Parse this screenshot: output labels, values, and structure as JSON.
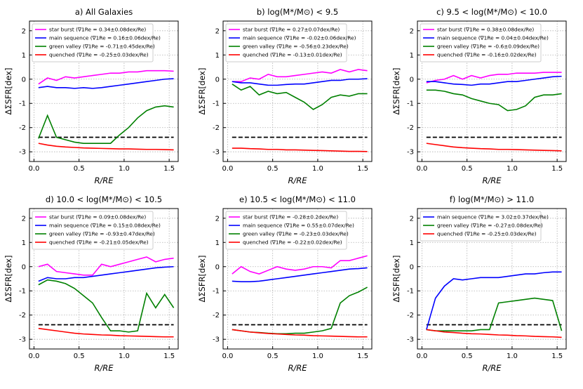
{
  "chart_data": [
    {
      "type": "line",
      "title": "a) All Galaxies",
      "xlabel": "R/RE",
      "ylabel": "ΔΣSFR[dex]",
      "xlim": [
        -0.05,
        1.6
      ],
      "ylim": [
        -3.4,
        2.4
      ],
      "xticks": [
        {
          "value": 0,
          "label": "0.0"
        },
        0.5,
        {
          "value": 1,
          "label": "1.0"
        },
        1.5
      ],
      "yticks": [
        -3,
        -2,
        -1,
        0,
        1,
        2
      ],
      "grid": true,
      "hline": -2.4,
      "x": [
        0.05,
        0.15,
        0.25,
        0.35,
        0.45,
        0.55,
        0.65,
        0.75,
        0.85,
        0.95,
        1.05,
        1.15,
        1.25,
        1.35,
        1.45,
        1.55
      ],
      "series": [
        {
          "name": "star burst (∇1Re = 0.34±0.08dex/Re)",
          "color": "#ff00ff",
          "values": [
            -0.2,
            0.05,
            -0.05,
            0.1,
            0.05,
            0.1,
            0.15,
            0.2,
            0.25,
            0.25,
            0.3,
            0.3,
            0.35,
            0.35,
            0.35,
            0.33
          ]
        },
        {
          "name": "main sequence (∇1Re = 0.16±0.06dex/Re)",
          "color": "#0000ff",
          "values": [
            -0.35,
            -0.3,
            -0.35,
            -0.35,
            -0.38,
            -0.35,
            -0.38,
            -0.35,
            -0.3,
            -0.25,
            -0.2,
            -0.15,
            -0.1,
            -0.05,
            0,
            0.02
          ]
        },
        {
          "name": "green valley (∇1Re = -0.71±0.45dex/Re)",
          "color": "#008000",
          "values": [
            -2.45,
            -1.5,
            -2.4,
            -2.5,
            -2.6,
            -2.65,
            -2.65,
            -2.65,
            -2.65,
            -2.3,
            -2.0,
            -1.6,
            -1.3,
            -1.15,
            -1.1,
            -1.15
          ]
        },
        {
          "name": "quenched (∇1Re = -0.25±0.03dex/Re)",
          "color": "#ff0000",
          "values": [
            -2.65,
            -2.72,
            -2.77,
            -2.8,
            -2.82,
            -2.84,
            -2.85,
            -2.86,
            -2.87,
            -2.88,
            -2.88,
            -2.89,
            -2.9,
            -2.9,
            -2.91,
            -2.92
          ]
        }
      ]
    },
    {
      "type": "line",
      "title": "b) log(M*/M⊙) < 9.5",
      "xlabel": "R/RE",
      "ylabel": "ΔΣSFR[dex]",
      "xlim": [
        -0.05,
        1.6
      ],
      "ylim": [
        -3.4,
        2.4
      ],
      "xticks": [
        {
          "value": 0,
          "label": "0.0"
        },
        0.5,
        {
          "value": 1,
          "label": "1.0"
        },
        1.5
      ],
      "yticks": [
        -3,
        -2,
        -1,
        0,
        1,
        2
      ],
      "grid": true,
      "hline": -2.4,
      "x": [
        0.05,
        0.15,
        0.25,
        0.35,
        0.45,
        0.55,
        0.65,
        0.75,
        0.85,
        0.95,
        1.05,
        1.15,
        1.25,
        1.35,
        1.45,
        1.55
      ],
      "series": [
        {
          "name": "star burst (∇1Re = 0.27±0.07dex/Re)",
          "color": "#ff00ff",
          "values": [
            -0.1,
            -0.1,
            0.05,
            0.0,
            0.2,
            0.1,
            0.1,
            0.15,
            0.2,
            0.25,
            0.3,
            0.25,
            0.4,
            0.3,
            0.4,
            0.35
          ]
        },
        {
          "name": "main sequence (∇1Re = -0.02±0.06dex/Re)",
          "color": "#0000ff",
          "values": [
            -0.1,
            -0.15,
            -0.15,
            -0.2,
            -0.25,
            -0.25,
            -0.22,
            -0.2,
            -0.2,
            -0.15,
            -0.1,
            -0.05,
            -0.05,
            0,
            0,
            0.02
          ]
        },
        {
          "name": "green valley (∇1Re = -0.56±0.23dex/Re)",
          "color": "#008000",
          "values": [
            -0.2,
            -0.45,
            -0.3,
            -0.65,
            -0.5,
            -0.6,
            -0.55,
            -0.75,
            -0.95,
            -1.25,
            -1.05,
            -0.75,
            -0.65,
            -0.7,
            -0.6,
            -0.6
          ]
        },
        {
          "name": "quenched (∇1Re = -0.13±0.01dex/Re)",
          "color": "#ff0000",
          "values": [
            -2.85,
            -2.85,
            -2.87,
            -2.88,
            -2.9,
            -2.9,
            -2.92,
            -2.92,
            -2.93,
            -2.94,
            -2.95,
            -2.96,
            -2.97,
            -2.98,
            -2.98,
            -2.99
          ]
        }
      ]
    },
    {
      "type": "line",
      "title": "c) 9.5 < log(M*/M⊙) < 10.0",
      "xlabel": "R/RE",
      "ylabel": "ΔΣSFR[dex]",
      "xlim": [
        -0.05,
        1.6
      ],
      "ylim": [
        -3.4,
        2.4
      ],
      "xticks": [
        {
          "value": 0,
          "label": "0.0"
        },
        0.5,
        {
          "value": 1,
          "label": "1.0"
        },
        1.5
      ],
      "yticks": [
        -3,
        -2,
        -1,
        0,
        1,
        2
      ],
      "grid": true,
      "hline": -2.4,
      "x": [
        0.05,
        0.15,
        0.25,
        0.35,
        0.45,
        0.55,
        0.65,
        0.75,
        0.85,
        0.95,
        1.05,
        1.15,
        1.25,
        1.35,
        1.45,
        1.55
      ],
      "series": [
        {
          "name": "star burst (∇1Re = 0.38±0.08dex/Re)",
          "color": "#ff00ff",
          "values": [
            -0.15,
            -0.05,
            0.0,
            0.15,
            0.0,
            0.15,
            0.05,
            0.15,
            0.2,
            0.2,
            0.25,
            0.25,
            0.25,
            0.28,
            0.28,
            0.28
          ]
        },
        {
          "name": "main sequence (∇1Re = 0.04±0.04dex/Re)",
          "color": "#0000ff",
          "values": [
            -0.1,
            -0.1,
            -0.15,
            -0.2,
            -0.22,
            -0.25,
            -0.2,
            -0.2,
            -0.15,
            -0.1,
            -0.1,
            -0.05,
            0.0,
            0.05,
            0.1,
            0.12
          ]
        },
        {
          "name": "green valley (∇1Re = -0.6±0.09dex/Re)",
          "color": "#008000",
          "values": [
            -0.45,
            -0.45,
            -0.5,
            -0.6,
            -0.65,
            -0.8,
            -0.9,
            -1.0,
            -1.05,
            -1.3,
            -1.25,
            -1.1,
            -0.75,
            -0.65,
            -0.65,
            -0.6
          ]
        },
        {
          "name": "quenched (∇1Re = -0.16±0.02dex/Re)",
          "color": "#ff0000",
          "values": [
            -2.65,
            -2.7,
            -2.75,
            -2.8,
            -2.83,
            -2.85,
            -2.87,
            -2.88,
            -2.9,
            -2.9,
            -2.91,
            -2.92,
            -2.93,
            -2.94,
            -2.95,
            -2.96
          ]
        }
      ]
    },
    {
      "type": "line",
      "title": "d) 10.0 < log(M*/M⊙) < 10.5",
      "xlabel": "R/RE",
      "ylabel": "ΔΣSFR[dex]",
      "xlim": [
        -0.05,
        1.6
      ],
      "ylim": [
        -3.4,
        2.4
      ],
      "xticks": [
        {
          "value": 0,
          "label": "0.0"
        },
        0.5,
        {
          "value": 1,
          "label": "1.0"
        },
        1.5
      ],
      "yticks": [
        -3,
        -2,
        -1,
        0,
        1,
        2
      ],
      "grid": true,
      "hline": -2.4,
      "x": [
        0.05,
        0.15,
        0.25,
        0.35,
        0.45,
        0.55,
        0.65,
        0.75,
        0.85,
        0.95,
        1.05,
        1.15,
        1.25,
        1.35,
        1.45,
        1.55
      ],
      "series": [
        {
          "name": "star burst (∇1Re = 0.09±0.08dex/Re)",
          "color": "#ff00ff",
          "values": [
            0.0,
            0.1,
            -0.2,
            -0.25,
            -0.3,
            -0.35,
            -0.35,
            0.1,
            0.0,
            0.1,
            0.2,
            0.3,
            0.4,
            0.2,
            0.3,
            0.35
          ]
        },
        {
          "name": "main sequence (∇1Re = 0.15±0.08dex/Re)",
          "color": "#0000ff",
          "values": [
            -0.6,
            -0.45,
            -0.5,
            -0.5,
            -0.45,
            -0.45,
            -0.4,
            -0.35,
            -0.3,
            -0.25,
            -0.2,
            -0.15,
            -0.1,
            -0.05,
            -0.02,
            0.0
          ]
        },
        {
          "name": "green valley (∇1Re = -0.93±0.47dex/Re)",
          "color": "#008000",
          "values": [
            -0.75,
            -0.55,
            -0.6,
            -0.7,
            -0.9,
            -1.2,
            -1.5,
            -2.1,
            -2.65,
            -2.65,
            -2.7,
            -2.65,
            -1.1,
            -1.7,
            -1.15,
            -1.7
          ]
        },
        {
          "name": "quenched (∇1Re = -0.21±0.05dex/Re)",
          "color": "#ff0000",
          "values": [
            -2.55,
            -2.6,
            -2.65,
            -2.7,
            -2.75,
            -2.78,
            -2.8,
            -2.82,
            -2.83,
            -2.85,
            -2.86,
            -2.87,
            -2.88,
            -2.89,
            -2.9,
            -2.9
          ]
        }
      ]
    },
    {
      "type": "line",
      "title": "e) 10.5 < log(M*/M⊙) < 11.0",
      "xlabel": "R/RE",
      "ylabel": "ΔΣSFR[dex]",
      "xlim": [
        -0.05,
        1.6
      ],
      "ylim": [
        -3.4,
        2.4
      ],
      "xticks": [
        {
          "value": 0,
          "label": "0.0"
        },
        0.5,
        {
          "value": 1,
          "label": "1.0"
        },
        1.5
      ],
      "yticks": [
        -3,
        -2,
        -1,
        0,
        1,
        2
      ],
      "grid": true,
      "hline": -2.4,
      "x": [
        0.05,
        0.15,
        0.25,
        0.35,
        0.45,
        0.55,
        0.65,
        0.75,
        0.85,
        0.95,
        1.05,
        1.15,
        1.25,
        1.35,
        1.45,
        1.55
      ],
      "series": [
        {
          "name": "star burst (∇1Re = -0.28±0.2dex/Re)",
          "color": "#ff00ff",
          "values": [
            -0.3,
            0.0,
            -0.2,
            -0.3,
            -0.15,
            0.0,
            -0.1,
            -0.15,
            -0.1,
            0.0,
            0.0,
            -0.05,
            0.25,
            0.25,
            0.35,
            0.45
          ]
        },
        {
          "name": "main sequence (∇1Re = 0.55±0.07dex/Re)",
          "color": "#0000ff",
          "values": [
            -0.6,
            -0.62,
            -0.62,
            -0.6,
            -0.55,
            -0.5,
            -0.45,
            -0.4,
            -0.35,
            -0.3,
            -0.25,
            -0.2,
            -0.15,
            -0.1,
            -0.08,
            -0.05
          ]
        },
        {
          "name": "green valley (∇1Re = -0.23±0.03dex/Re)",
          "color": "#008000",
          "values": [
            -2.6,
            -2.65,
            -2.7,
            -2.72,
            -2.75,
            -2.77,
            -2.77,
            -2.75,
            -2.75,
            -2.7,
            -2.65,
            -2.55,
            -1.5,
            -1.2,
            -1.05,
            -0.85
          ]
        },
        {
          "name": "quenched (∇1Re = -0.22±0.02dex/Re)",
          "color": "#ff0000",
          "values": [
            -2.6,
            -2.65,
            -2.7,
            -2.73,
            -2.76,
            -2.78,
            -2.8,
            -2.82,
            -2.83,
            -2.85,
            -2.86,
            -2.87,
            -2.88,
            -2.89,
            -2.9,
            -2.9
          ]
        }
      ]
    },
    {
      "type": "line",
      "title": "f) log(M*/M⊙) > 11.0",
      "xlabel": "R/RE",
      "ylabel": "ΔΣSFR[dex]",
      "xlim": [
        -0.05,
        1.6
      ],
      "ylim": [
        -3.4,
        2.4
      ],
      "xticks": [
        {
          "value": 0,
          "label": "0.0"
        },
        0.5,
        {
          "value": 1,
          "label": "1.0"
        },
        1.5
      ],
      "yticks": [
        -3,
        -2,
        -1,
        0,
        1,
        2
      ],
      "grid": true,
      "hline": -2.4,
      "x": [
        0.05,
        0.15,
        0.25,
        0.35,
        0.45,
        0.55,
        0.65,
        0.75,
        0.85,
        0.95,
        1.05,
        1.15,
        1.25,
        1.35,
        1.45,
        1.55
      ],
      "series": [
        {
          "name": "main sequence (∇1Re = 3.02±0.37dex/Re)",
          "color": "#0000ff",
          "values": [
            -2.6,
            -1.3,
            -0.8,
            -0.5,
            -0.55,
            -0.5,
            -0.45,
            -0.45,
            -0.45,
            -0.4,
            -0.35,
            -0.3,
            -0.3,
            -0.25,
            -0.22,
            -0.22
          ]
        },
        {
          "name": "green valley (∇1Re = -0.27±0.08dex/Re)",
          "color": "#008000",
          "values": [
            -2.6,
            -2.65,
            -2.65,
            -2.65,
            -2.65,
            -2.65,
            -2.6,
            -2.6,
            -1.5,
            -1.45,
            -1.4,
            -1.35,
            -1.3,
            -1.35,
            -1.4,
            -2.65
          ]
        },
        {
          "name": "quenched (∇1Re = -0.25±0.03dex/Re)",
          "color": "#ff0000",
          "values": [
            -2.6,
            -2.65,
            -2.7,
            -2.72,
            -2.75,
            -2.77,
            -2.78,
            -2.8,
            -2.82,
            -2.83,
            -2.85,
            -2.86,
            -2.88,
            -2.89,
            -2.9,
            -2.92
          ]
        }
      ]
    }
  ]
}
